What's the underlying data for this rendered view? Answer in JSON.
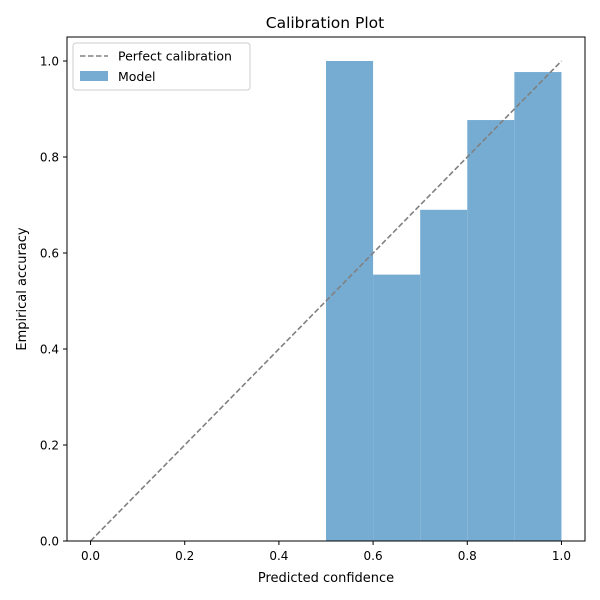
{
  "chart_data": {
    "type": "bar",
    "title": "Calibration Plot",
    "xlabel": "Predicted confidence",
    "ylabel": "Empirical accuracy",
    "xlim": [
      -0.05,
      1.05
    ],
    "ylim": [
      0.0,
      1.05
    ],
    "x_ticks": [
      "0.0",
      "0.2",
      "0.4",
      "0.6",
      "0.8",
      "1.0"
    ],
    "y_ticks": [
      "0.0",
      "0.2",
      "0.4",
      "0.6",
      "0.8",
      "1.0"
    ],
    "grid": false,
    "legend_position": "upper-left",
    "series": [
      {
        "name": "Perfect calibration",
        "kind": "line",
        "style": "dashed",
        "color": "#808080",
        "x": [
          0.0,
          1.0
        ],
        "y": [
          0.0,
          1.0
        ]
      },
      {
        "name": "Model",
        "kind": "bar",
        "color": "#77acd2",
        "bins": [
          {
            "x_start": 0.5,
            "x_end": 0.6,
            "value": 1.0
          },
          {
            "x_start": 0.6,
            "x_end": 0.7,
            "value": 0.555
          },
          {
            "x_start": 0.7,
            "x_end": 0.8,
            "value": 0.69
          },
          {
            "x_start": 0.8,
            "x_end": 0.9,
            "value": 0.877
          },
          {
            "x_start": 0.9,
            "x_end": 1.0,
            "value": 0.977
          }
        ]
      }
    ]
  }
}
